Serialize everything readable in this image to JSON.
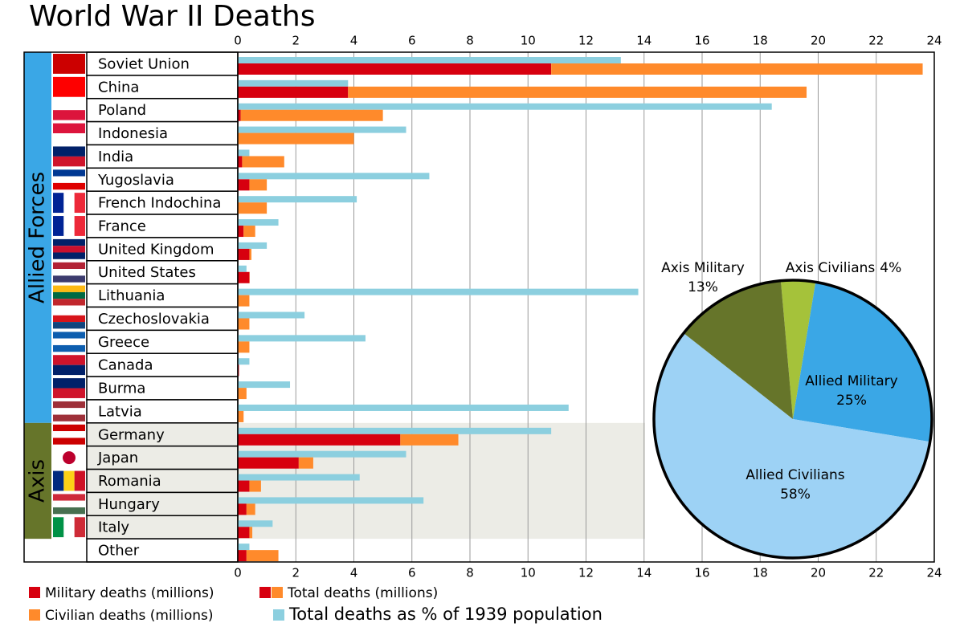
{
  "chart_data": [
    {
      "type": "bar",
      "orientation": "horizontal",
      "stacked": true,
      "title": "World War II Deaths",
      "categories": [
        "Soviet Union",
        "China",
        "Poland",
        "Indonesia",
        "India",
        "Yugoslavia",
        "French Indochina",
        "France",
        "United Kingdom",
        "United States",
        "Lithuania",
        "Czechoslovakia",
        "Greece",
        "Canada",
        "Burma",
        "Latvia",
        "Germany",
        "Japan",
        "Romania",
        "Hungary",
        "Italy",
        "Other"
      ],
      "groups": [
        {
          "name": "Allied Forces",
          "color": "#3aa7e6"
        },
        {
          "name": "Axis",
          "color": "#66752a"
        }
      ],
      "series": [
        {
          "name": "Military deaths (millions)",
          "color": "#d7000f",
          "stack": "total",
          "values": [
            10.8,
            3.8,
            0.1,
            0,
            0.15,
            0.4,
            0,
            0.2,
            0.4,
            0.4,
            0,
            0,
            0,
            0.04,
            0,
            0,
            5.6,
            2.1,
            0.4,
            0.3,
            0.4,
            0.3
          ]
        },
        {
          "name": "Civilian deaths (millions)",
          "color": "#ff8a2b",
          "stack": "total",
          "values": [
            12.8,
            15.8,
            4.9,
            4.0,
            1.45,
            0.6,
            1.0,
            0.4,
            0.07,
            0.01,
            0.4,
            0.4,
            0.4,
            0,
            0.3,
            0.2,
            2.0,
            0.5,
            0.4,
            0.3,
            0.1,
            1.1
          ]
        },
        {
          "name": "Total deaths as % of 1939 population",
          "color": "#8ccfdf",
          "values": [
            13.2,
            3.8,
            18.4,
            5.8,
            0.4,
            6.6,
            4.1,
            1.4,
            1.0,
            0.3,
            13.8,
            2.3,
            4.4,
            0.4,
            1.8,
            11.4,
            10.8,
            5.8,
            4.2,
            6.4,
            1.2,
            0.4
          ]
        }
      ],
      "legend_total": "Total deaths (millions)",
      "xlim": [
        0,
        24
      ],
      "xticks": [
        0,
        2,
        4,
        6,
        8,
        10,
        12,
        14,
        16,
        18,
        20,
        22,
        24
      ],
      "grid": true
    },
    {
      "type": "pie",
      "categories": [
        "Axis Civilians",
        "Allied Military",
        "Allied Civilians",
        "Axis Military"
      ],
      "values": [
        4,
        25,
        58,
        13
      ],
      "value_labels": [
        "4%",
        "25%",
        "58%",
        "13%"
      ],
      "colors": [
        "#a5c23a",
        "#3aa7e6",
        "#9dd2f5",
        "#66752a"
      ]
    }
  ]
}
